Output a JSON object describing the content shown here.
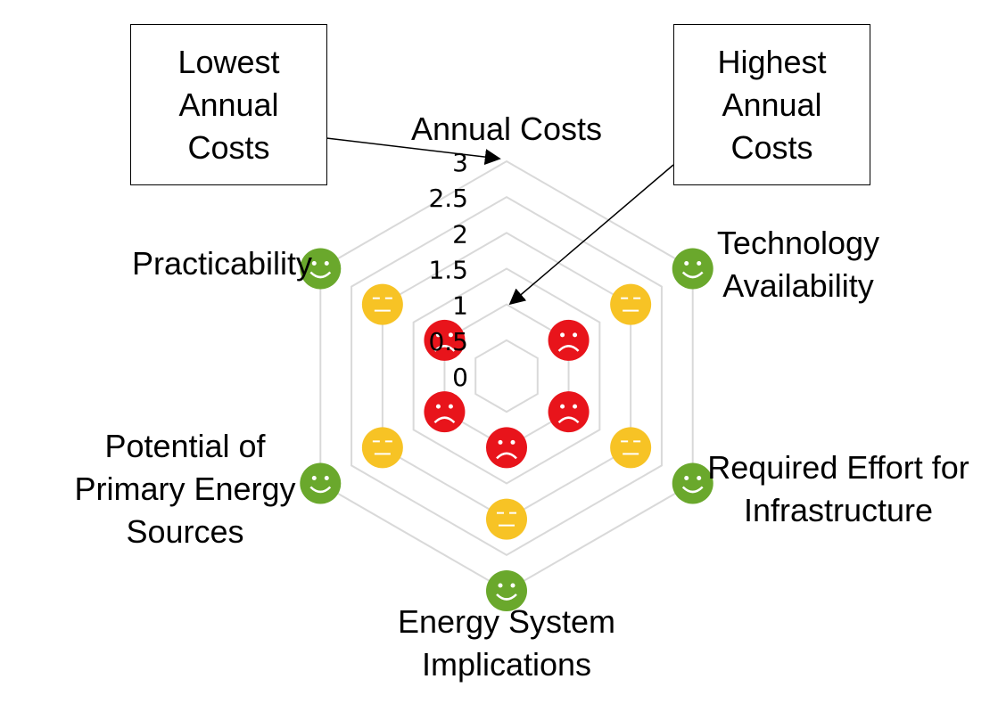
{
  "chart_data": {
    "type": "radar",
    "categories": [
      "Annual Costs",
      "Technology Availability",
      "Required Effort for Infrastructure",
      "Energy System Implications",
      "Potential of Primary Energy Sources",
      "Practicability"
    ],
    "ylim": [
      0,
      3
    ],
    "yticks": [
      0,
      0.5,
      1,
      1.5,
      2,
      2.5,
      3
    ],
    "grid": true,
    "series": [
      {
        "color": "#6aa82c",
        "marker": "happy",
        "values": [
          null,
          3,
          3,
          3,
          3,
          3
        ]
      },
      {
        "color": "#f7c325",
        "marker": "neutral",
        "values": [
          null,
          2,
          2,
          2,
          2,
          2
        ]
      },
      {
        "color": "#e8141b",
        "marker": "sad",
        "values": [
          null,
          1,
          1,
          1,
          1,
          1
        ]
      }
    ],
    "annotations": [
      "Lowest Annual Costs",
      "Highest Annual Costs"
    ]
  }
}
